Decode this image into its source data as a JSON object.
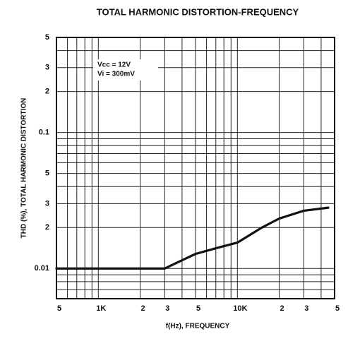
{
  "chart_data": {
    "type": "line",
    "title": "TOTAL HARMONIC DISTORTION-FREQUENCY",
    "xlabel": "f(Hz), FREQUENCY",
    "ylabel": "THD (%), TOTAL HARMONIC DISTORTION",
    "annotations": [
      "Vcc = 12V",
      "Vi = 300mV"
    ],
    "xlog": true,
    "ylog": true,
    "grid": true,
    "xlim": [
      500,
      50000
    ],
    "ylim": [
      0.006,
      0.5
    ],
    "xticks": [
      {
        "value": 500,
        "label": "5"
      },
      {
        "value": 1000,
        "label": "1K"
      },
      {
        "value": 2000,
        "label": "2"
      },
      {
        "value": 3000,
        "label": "3"
      },
      {
        "value": 5000,
        "label": "5"
      },
      {
        "value": 10000,
        "label": "10K"
      },
      {
        "value": 20000,
        "label": "2"
      },
      {
        "value": 30000,
        "label": "3"
      },
      {
        "value": 50000,
        "label": "5"
      }
    ],
    "xminor": [
      600,
      700,
      800,
      900,
      4000,
      6000,
      7000,
      8000,
      9000,
      40000
    ],
    "yticks": [
      {
        "value": 0.5,
        "label": "5"
      },
      {
        "value": 0.3,
        "label": "3"
      },
      {
        "value": 0.2,
        "label": "2"
      },
      0.1,
      {
        "value": 0.05,
        "label": "5"
      },
      {
        "value": 0.03,
        "label": "3"
      },
      {
        "value": 0.02,
        "label": "2"
      },
      0.01
    ],
    "yminor": [
      0.4,
      0.09,
      0.08,
      0.07,
      0.06,
      0.04,
      0.009,
      0.008,
      0.007
    ],
    "series": [
      {
        "color": "#111111",
        "x": [
          500,
          1000,
          2000,
          3000,
          4000,
          5000,
          7000,
          10000,
          15000,
          20000,
          30000,
          45000
        ],
        "values": [
          0.01,
          0.01,
          0.01,
          0.01,
          0.0115,
          0.0128,
          0.0141,
          0.0155,
          0.02,
          0.0233,
          0.0266,
          0.028
        ]
      }
    ]
  }
}
